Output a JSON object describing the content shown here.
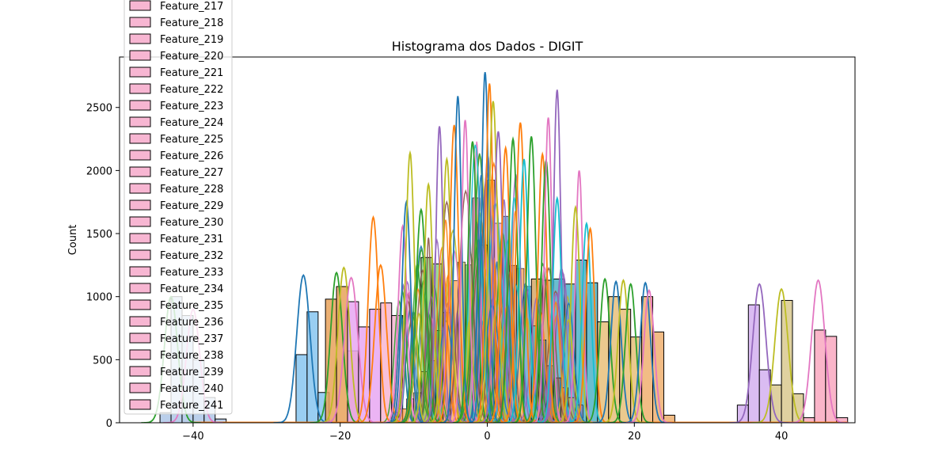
{
  "chart_data": {
    "type": "histogram",
    "title": "Histograma dos Dados - DIGIT",
    "xlabel": "",
    "ylabel": "Count",
    "xlim": [
      -50,
      50
    ],
    "ylim": [
      0,
      2900
    ],
    "xticks": [
      -40,
      -20,
      0,
      20,
      40
    ],
    "xtick_labels": [
      "−40",
      "−20",
      "0",
      "20",
      "40"
    ],
    "yticks": [
      0,
      500,
      1000,
      1500,
      2000,
      2500
    ],
    "grid": false,
    "legend_position": "upper-left",
    "legend_entries": [
      "Feature_217",
      "Feature_218",
      "Feature_219",
      "Feature_220",
      "Feature_221",
      "Feature_222",
      "Feature_223",
      "Feature_224",
      "Feature_225",
      "Feature_226",
      "Feature_227",
      "Feature_228",
      "Feature_229",
      "Feature_230",
      "Feature_231",
      "Feature_232",
      "Feature_233",
      "Feature_234",
      "Feature_235",
      "Feature_236",
      "Feature_237",
      "Feature_238",
      "Feature_239",
      "Feature_240",
      "Feature_241"
    ],
    "legend_color": "#f7b6d2",
    "bar_groups": [
      {
        "color": "#aec7e8",
        "bars": [
          [
            -44.5,
            -43,
            80
          ],
          [
            -43,
            -41.5,
            1000
          ],
          [
            -41.5,
            -40,
            850
          ],
          [
            -40,
            -38.5,
            500
          ],
          [
            -38.5,
            -37,
            200
          ],
          [
            -37,
            -35.5,
            30
          ]
        ]
      },
      {
        "color": "#87c5f0",
        "bars": [
          [
            -26,
            -24.5,
            540
          ],
          [
            -24.5,
            -23,
            880
          ],
          [
            -23,
            -21.5,
            240
          ]
        ]
      },
      {
        "color": "#e8a25a",
        "bars": [
          [
            -22,
            -20.5,
            980
          ],
          [
            -20.5,
            -19,
            1080
          ],
          [
            -19,
            -17.5,
            570
          ]
        ]
      },
      {
        "color": "#e7a7f2",
        "bars": [
          [
            -19,
            -17.5,
            960
          ],
          [
            -17.5,
            -16,
            760
          ],
          [
            -16,
            -14.5,
            900
          ]
        ]
      },
      {
        "color": "#f7b6d2",
        "bars": [
          [
            -14.5,
            -13,
            950
          ],
          [
            -13,
            -11.5,
            850
          ]
        ]
      },
      {
        "color": "#8fd17f",
        "bars": [
          [
            -9,
            -7.5,
            1310
          ],
          [
            -7.5,
            -6,
            1260
          ]
        ]
      },
      {
        "color": "#d6a86a",
        "bars": [
          [
            6,
            7.5,
            1140
          ],
          [
            7.5,
            9,
            1130
          ]
        ]
      },
      {
        "color": "#4fb3c7",
        "bars": [
          [
            9,
            10.5,
            1140
          ],
          [
            10.5,
            12,
            1100
          ],
          [
            12,
            13.5,
            1290
          ],
          [
            13.5,
            15,
            1110
          ]
        ]
      },
      {
        "color": "#e8c07a",
        "bars": [
          [
            15,
            16.5,
            800
          ],
          [
            16.5,
            18,
            1000
          ],
          [
            18,
            19.5,
            900
          ],
          [
            19.5,
            21,
            680
          ]
        ]
      },
      {
        "color": "#f0b070",
        "bars": [
          [
            21,
            22.5,
            1000
          ],
          [
            22.5,
            24,
            720
          ],
          [
            24,
            25.5,
            60
          ]
        ]
      },
      {
        "color": "#d4b0f0",
        "bars": [
          [
            34,
            35.5,
            140
          ],
          [
            35.5,
            37,
            935
          ],
          [
            37,
            38.5,
            420
          ]
        ]
      },
      {
        "color": "#d9c98f",
        "bars": [
          [
            38.5,
            40,
            300
          ],
          [
            40,
            41.5,
            970
          ],
          [
            41.5,
            43,
            230
          ]
        ]
      },
      {
        "color": "#f9a8c0",
        "bars": [
          [
            43,
            44.5,
            40
          ],
          [
            44.5,
            46,
            735
          ],
          [
            46,
            47.5,
            685
          ],
          [
            47.5,
            49,
            40
          ]
        ]
      }
    ],
    "kde_curves": [
      {
        "color": "#1f77b4",
        "center": -25,
        "width": 0.9,
        "peak": 1170
      },
      {
        "color": "#2ca02c",
        "center": -20.5,
        "width": 0.8,
        "peak": 1190
      },
      {
        "color": "#bcbd22",
        "center": -19.5,
        "width": 0.8,
        "peak": 1230
      },
      {
        "color": "#e377c2",
        "center": -18.5,
        "width": 0.9,
        "peak": 1150
      },
      {
        "color": "#ff7f0e",
        "center": -15.5,
        "width": 0.7,
        "peak": 1630
      },
      {
        "color": "#ff7f0e",
        "center": -14.5,
        "width": 0.8,
        "peak": 1250
      },
      {
        "color": "#e377c2",
        "center": -11.5,
        "width": 0.6,
        "peak": 1560
      },
      {
        "color": "#1f77b4",
        "center": -11,
        "width": 0.6,
        "peak": 1750
      },
      {
        "color": "#bcbd22",
        "center": -10.5,
        "width": 0.6,
        "peak": 2140
      },
      {
        "color": "#2ca02c",
        "center": -9,
        "width": 0.7,
        "peak": 1690
      },
      {
        "color": "#bcbd22",
        "center": -8,
        "width": 0.6,
        "peak": 1890
      },
      {
        "color": "#9467bd",
        "center": -6.5,
        "width": 0.5,
        "peak": 2350
      },
      {
        "color": "#bcbd22",
        "center": -5.5,
        "width": 0.6,
        "peak": 2090
      },
      {
        "color": "#ff7f0e",
        "center": -4.5,
        "width": 0.6,
        "peak": 2360
      },
      {
        "color": "#1f77b4",
        "center": -4,
        "width": 0.5,
        "peak": 2590
      },
      {
        "color": "#e377c2",
        "center": -3,
        "width": 0.5,
        "peak": 2400
      },
      {
        "color": "#2ca02c",
        "center": -2,
        "width": 0.6,
        "peak": 2230
      },
      {
        "color": "#1f77b4",
        "center": -0.3,
        "width": 0.5,
        "peak": 2780
      },
      {
        "color": "#ff7f0e",
        "center": 0.3,
        "width": 0.5,
        "peak": 2690
      },
      {
        "color": "#bcbd22",
        "center": 0.8,
        "width": 0.6,
        "peak": 2550
      },
      {
        "color": "#9467bd",
        "center": 1.5,
        "width": 0.6,
        "peak": 2310
      },
      {
        "color": "#ff7f0e",
        "center": 2.5,
        "width": 0.6,
        "peak": 2180
      },
      {
        "color": "#2ca02c",
        "center": 3.5,
        "width": 0.6,
        "peak": 2250
      },
      {
        "color": "#ff7f0e",
        "center": 4.5,
        "width": 0.6,
        "peak": 2380
      },
      {
        "color": "#17becf",
        "center": 5,
        "width": 0.6,
        "peak": 2090
      },
      {
        "color": "#2ca02c",
        "center": 6,
        "width": 0.6,
        "peak": 2270
      },
      {
        "color": "#ff7f0e",
        "center": 7.5,
        "width": 0.6,
        "peak": 2130
      },
      {
        "color": "#2ca02c",
        "center": 8,
        "width": 0.6,
        "peak": 2080
      },
      {
        "color": "#e377c2",
        "center": 8.3,
        "width": 0.5,
        "peak": 2420
      },
      {
        "color": "#9467bd",
        "center": 9.5,
        "width": 0.5,
        "peak": 2640
      },
      {
        "color": "#17becf",
        "center": 9.5,
        "width": 0.6,
        "peak": 1780
      },
      {
        "color": "#e377c2",
        "center": 12.5,
        "width": 0.5,
        "peak": 2000
      },
      {
        "color": "#bcbd22",
        "center": 12,
        "width": 0.6,
        "peak": 1710
      },
      {
        "color": "#17becf",
        "center": 13.5,
        "width": 0.6,
        "peak": 1580
      },
      {
        "color": "#ff7f0e",
        "center": 14,
        "width": 0.6,
        "peak": 1540
      },
      {
        "color": "#2ca02c",
        "center": 16,
        "width": 0.7,
        "peak": 1140
      },
      {
        "color": "#1f77b4",
        "center": 17.5,
        "width": 0.7,
        "peak": 1120
      },
      {
        "color": "#bcbd22",
        "center": 18.5,
        "width": 0.7,
        "peak": 1130
      },
      {
        "color": "#2ca02c",
        "center": 19.5,
        "width": 0.7,
        "peak": 1100
      },
      {
        "color": "#1f77b4",
        "center": 21.5,
        "width": 0.7,
        "peak": 1110
      },
      {
        "color": "#e377c2",
        "center": 22,
        "width": 0.7,
        "peak": 1050
      },
      {
        "color": "#9467bd",
        "center": 37,
        "width": 0.9,
        "peak": 1100
      },
      {
        "color": "#bcbd22",
        "center": 40,
        "width": 0.9,
        "peak": 1060
      },
      {
        "color": "#e377c2",
        "center": 45,
        "width": 0.9,
        "peak": 1130
      },
      {
        "color": "#2ca02c",
        "center": -43,
        "width": 0.9,
        "peak": 1000
      },
      {
        "color": "#e377c2",
        "center": -40,
        "width": 0.9,
        "peak": 900
      }
    ],
    "central_mass": {
      "x_range": [
        -13,
        13
      ],
      "colors": [
        "#2ca02c",
        "#ff7f0e",
        "#1f77b4",
        "#bcbd22",
        "#e377c2",
        "#9467bd",
        "#17becf",
        "#8c564b"
      ],
      "peak": 1950
    }
  }
}
